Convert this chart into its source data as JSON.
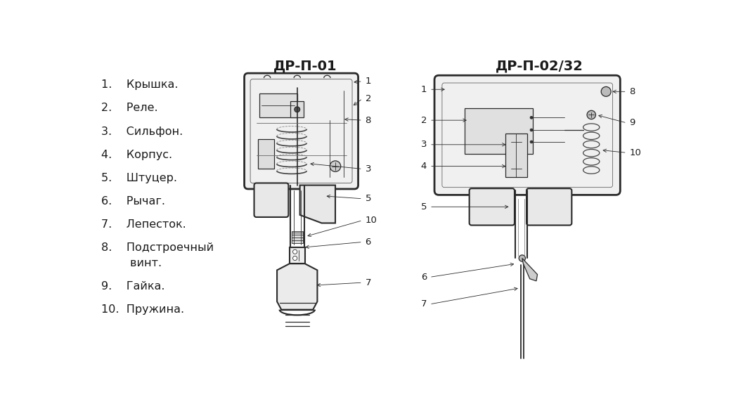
{
  "title_left": "ДР-П-01",
  "title_right": "ДР-П-02/32",
  "background_color": "#ffffff",
  "text_color": "#1a1a1a",
  "line_color": "#2a2a2a",
  "title_fontsize": 14,
  "legend_fontsize": 11.5,
  "fig_width": 10.57,
  "fig_height": 5.92,
  "dpi": 100,
  "legend_lines": [
    "1.    Крышка.",
    "2.    Реле.",
    "3.    Сильфон.",
    "4.    Корпус.",
    "5.    Штуцер.",
    "6.    Рычаг.",
    "7.    Лепесток.",
    "8.    Подстроечный",
    "        винт.",
    "9.    Гайка.",
    "10.  Пружина."
  ]
}
